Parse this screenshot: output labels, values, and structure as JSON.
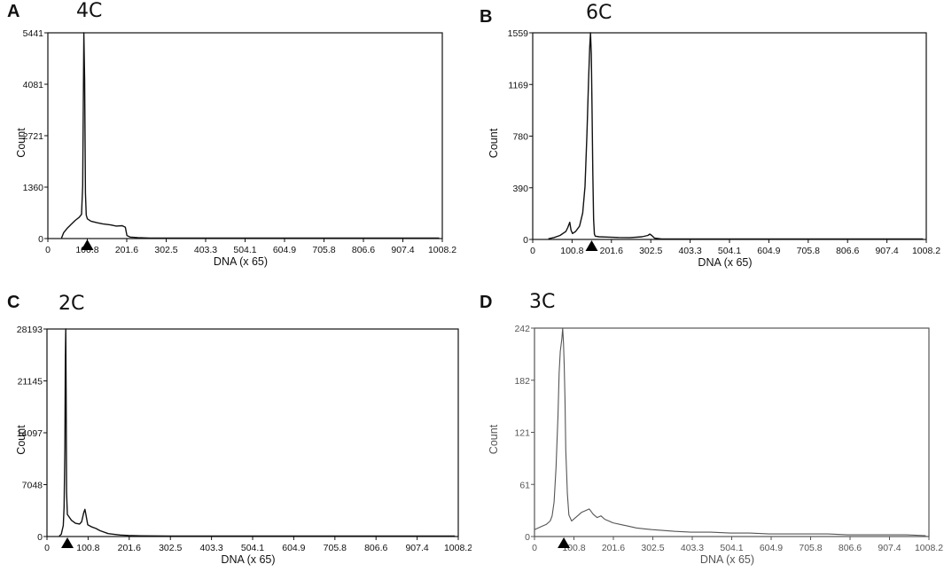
{
  "chart_data": [
    {
      "type": "line",
      "panel": "A",
      "ploidy": "4C",
      "xlabel": "DNA (x 65)",
      "ylabel": "Count",
      "xlim": [
        0,
        1008.2
      ],
      "ylim": [
        0,
        5441
      ],
      "xticks": [
        "0",
        "100.8",
        "201.6",
        "302.5",
        "403.3",
        "504.1",
        "604.9",
        "705.8",
        "806.6",
        "907.4",
        "1008.2"
      ],
      "yticks": [
        "0",
        "1360",
        "2721",
        "4081",
        "5441"
      ],
      "marker_x": 100.8,
      "series": [
        {
          "x": [
            35,
            40,
            50,
            60,
            70,
            80,
            86,
            89,
            91,
            92,
            94,
            96,
            98,
            101,
            110,
            125,
            140,
            160,
            175,
            190,
            198,
            202,
            210,
            230,
            260,
            300,
            400,
            500,
            600,
            700,
            800,
            900,
            1000
          ],
          "y": [
            0,
            150,
            280,
            380,
            480,
            560,
            640,
            1400,
            4200,
            5441,
            4200,
            1200,
            620,
            520,
            460,
            420,
            390,
            360,
            330,
            340,
            300,
            80,
            40,
            25,
            15,
            8,
            4,
            2,
            1,
            1,
            1,
            0,
            0
          ]
        }
      ]
    },
    {
      "type": "line",
      "panel": "B",
      "ploidy": "6C",
      "xlabel": "DNA (x 65)",
      "ylabel": "Count",
      "xlim": [
        0,
        1008.2
      ],
      "ylim": [
        0,
        1559
      ],
      "xticks": [
        "0",
        "100.8",
        "201.6",
        "302.5",
        "403.3",
        "504.1",
        "604.9",
        "705.8",
        "806.6",
        "907.4",
        "1008.2"
      ],
      "yticks": [
        "0",
        "390",
        "780",
        "1169",
        "1559"
      ],
      "marker_x": 151,
      "series": [
        {
          "x": [
            40,
            55,
            70,
            85,
            90,
            95,
            98,
            102,
            110,
            120,
            128,
            134,
            139,
            143,
            146,
            148,
            150,
            152,
            154,
            156,
            158,
            160,
            170,
            190,
            220,
            250,
            280,
            295,
            300,
            305,
            312,
            330,
            400,
            500,
            600,
            700,
            800,
            900,
            1000
          ],
          "y": [
            5,
            15,
            30,
            60,
            90,
            130,
            70,
            45,
            60,
            100,
            200,
            400,
            800,
            1200,
            1450,
            1559,
            1400,
            1000,
            500,
            150,
            40,
            25,
            20,
            18,
            15,
            14,
            20,
            30,
            40,
            30,
            10,
            3,
            2,
            1,
            1,
            0,
            0,
            0,
            0
          ]
        }
      ]
    },
    {
      "type": "line",
      "panel": "C",
      "ploidy": "2C",
      "xlabel": "DNA (x 65)",
      "ylabel": "Count",
      "xlim": [
        0,
        1008.2
      ],
      "ylim": [
        0,
        28193
      ],
      "xticks": [
        "0",
        "100.8",
        "201.6",
        "302.5",
        "403.3",
        "504.1",
        "604.9",
        "705.8",
        "806.6",
        "907.4",
        "1008.2"
      ],
      "yticks": [
        "0",
        "7048",
        "14097",
        "21145",
        "28193"
      ],
      "marker_x": 50,
      "series": [
        {
          "x": [
            30,
            35,
            40,
            42,
            44,
            45,
            46,
            47,
            48,
            50,
            55,
            60,
            70,
            80,
            85,
            90,
            93,
            96,
            100,
            110,
            120,
            130,
            150,
            180,
            200,
            230,
            300,
            400,
            500,
            600,
            700,
            800,
            900,
            1000
          ],
          "y": [
            0,
            300,
            1500,
            4000,
            12000,
            24000,
            28193,
            20000,
            6000,
            3000,
            2600,
            2200,
            1800,
            1700,
            2000,
            3200,
            3700,
            2800,
            1600,
            1300,
            1100,
            800,
            400,
            200,
            150,
            100,
            50,
            30,
            20,
            10,
            10,
            5,
            0,
            0
          ]
        }
      ]
    },
    {
      "type": "line",
      "panel": "D",
      "ploidy": "3C",
      "xlabel": "DNA (x 65)",
      "ylabel": "Count",
      "xlim": [
        0,
        1008.2
      ],
      "ylim": [
        0,
        242
      ],
      "xticks": [
        "0",
        "100.8",
        "201.6",
        "302.5",
        "403.3",
        "504.1",
        "604.9",
        "705.8",
        "806.6",
        "907.4",
        "1008.2"
      ],
      "yticks": [
        "0",
        "61",
        "121",
        "182",
        "242"
      ],
      "marker_x": 75,
      "series": [
        {
          "x": [
            0,
            10,
            20,
            30,
            40,
            45,
            50,
            55,
            60,
            63,
            66,
            70,
            72,
            74,
            76,
            78,
            80,
            84,
            88,
            95,
            100,
            110,
            120,
            130,
            140,
            150,
            160,
            170,
            180,
            190,
            200,
            220,
            240,
            260,
            280,
            300,
            330,
            360,
            400,
            450,
            500,
            550,
            600,
            650,
            700,
            750,
            800,
            850,
            900,
            950,
            1000
          ],
          "y": [
            8,
            10,
            12,
            14,
            18,
            24,
            40,
            80,
            140,
            190,
            215,
            230,
            242,
            225,
            200,
            160,
            100,
            50,
            25,
            18,
            20,
            24,
            28,
            30,
            32,
            26,
            22,
            24,
            20,
            18,
            16,
            14,
            12,
            10,
            9,
            8,
            7,
            6,
            5,
            5,
            4,
            4,
            3,
            3,
            3,
            3,
            2,
            2,
            2,
            2,
            1
          ]
        }
      ]
    }
  ]
}
